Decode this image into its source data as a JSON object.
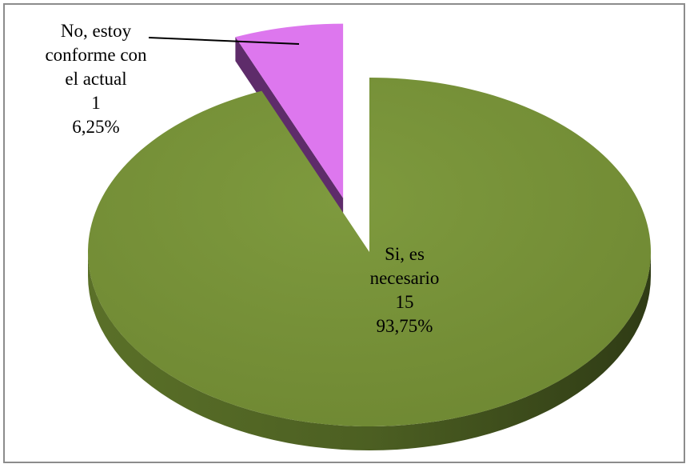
{
  "chart_data": {
    "type": "pie",
    "style": "3d-exploded",
    "slices": [
      {
        "label_lines": [
          "No, estoy",
          "conforme con",
          "el actual",
          "1",
          "6,25%"
        ],
        "category": "No, estoy conforme con el actual",
        "value": 1,
        "percent": "6,25%",
        "color": "#dd77ee",
        "side_color": "#5e2c6a",
        "exploded": true
      },
      {
        "label_lines": [
          "Si, es",
          "necesario",
          "15",
          "93,75%"
        ],
        "category": "Si, es necesario",
        "value": 15,
        "percent": "93,75%",
        "color": "#78923a",
        "side_color": "#4c5f22",
        "exploded": false
      }
    ],
    "legend": "none"
  }
}
